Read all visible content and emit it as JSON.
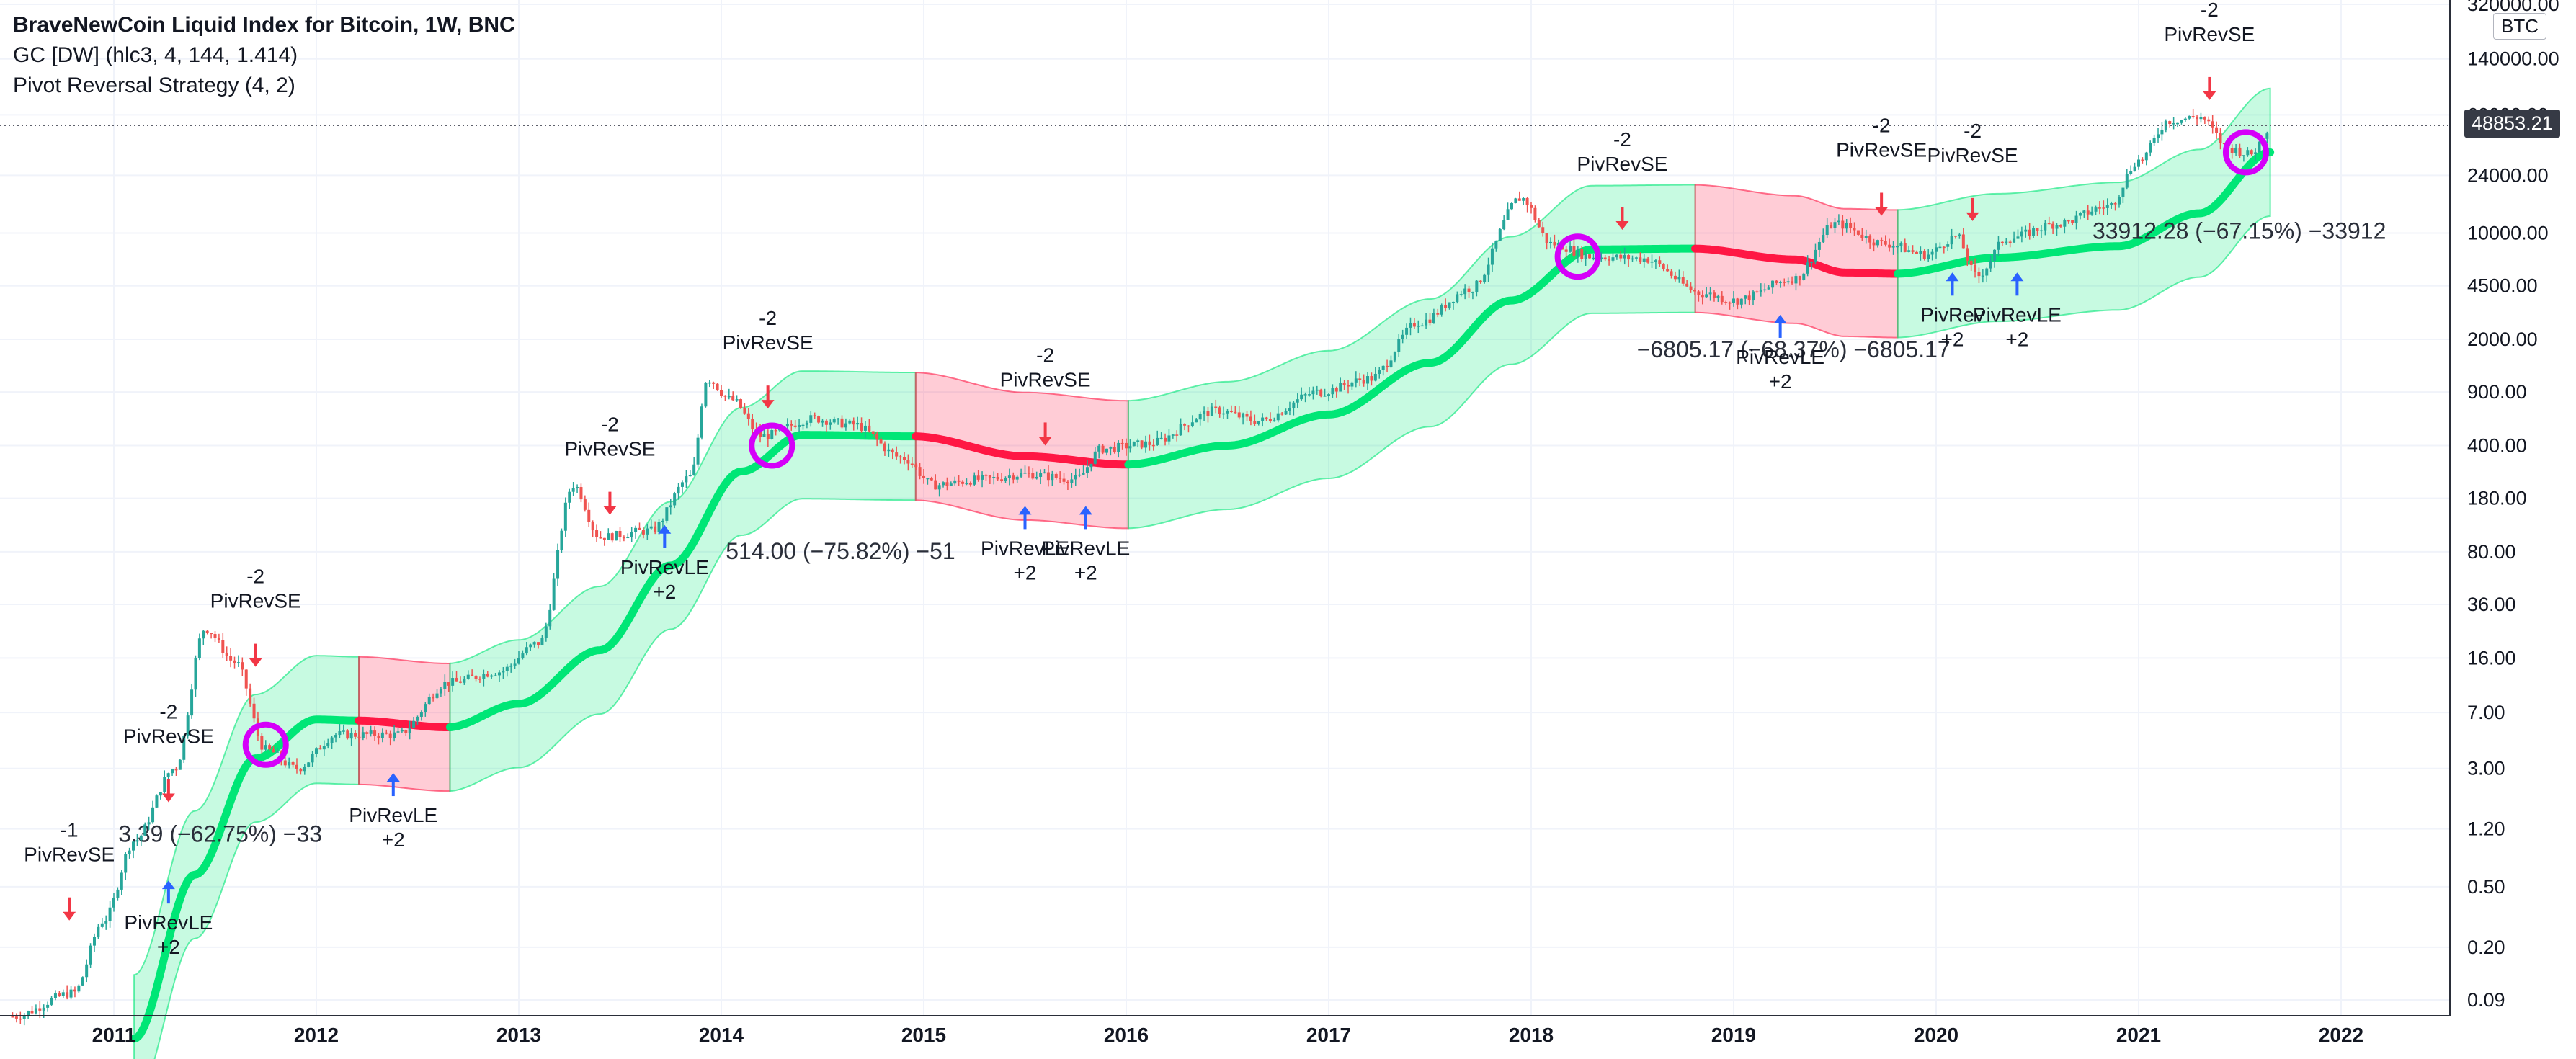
{
  "legend": {
    "title": "BraveNewCoin Liquid Index for Bitcoin, 1W, BNC",
    "indicator1": "GC [DW] (hlc3, 4, 144, 1.414)",
    "indicator2": "Pivot Reversal Strategy (4, 2)"
  },
  "price_axis": {
    "symbol_badge": "BTC",
    "current_price": "48853.21"
  },
  "colors": {
    "up_candle": "#26a69a",
    "down_candle": "#ef5350",
    "band_green": "#00e676",
    "band_red": "#ff1744",
    "buy_arrow": "#2962ff",
    "sell_arrow": "#f23645",
    "circle": "#d500f9",
    "grid": "#f0f3fa"
  },
  "chart_data": {
    "type": "candlestick",
    "scale": "log",
    "xlabel": "",
    "ylabel": "",
    "x_ticks": [
      "2011",
      "2012",
      "2013",
      "2014",
      "2015",
      "2016",
      "2017",
      "2018",
      "2019",
      "2020",
      "2021",
      "2022"
    ],
    "y_ticks": [
      "320000.00",
      "140000.00",
      "60000.00",
      "24000.00",
      "10000.00",
      "4500.00",
      "2000.00",
      "900.00",
      "400.00",
      "180.00",
      "80.00",
      "36.00",
      "16.00",
      "7.00",
      "3.00",
      "1.20",
      "0.50",
      "0.20",
      "0.09"
    ],
    "price_path": [
      {
        "date": "2010.5",
        "price": 0.07
      },
      {
        "date": "2010.8",
        "price": 0.1
      },
      {
        "date": "2010.95",
        "price": 0.3
      },
      {
        "date": "2011.1",
        "price": 1.0
      },
      {
        "date": "2011.3",
        "price": 3
      },
      {
        "date": "2011.45",
        "price": 25
      },
      {
        "date": "2011.6",
        "price": 15
      },
      {
        "date": "2011.75",
        "price": 4
      },
      {
        "date": "2011.9",
        "price": 3
      },
      {
        "date": "2012.1",
        "price": 5
      },
      {
        "date": "2012.4",
        "price": 5
      },
      {
        "date": "2012.65",
        "price": 11
      },
      {
        "date": "2012.9",
        "price": 13
      },
      {
        "date": "2013.1",
        "price": 20
      },
      {
        "date": "2013.27",
        "price": 220
      },
      {
        "date": "2013.4",
        "price": 100
      },
      {
        "date": "2013.65",
        "price": 110
      },
      {
        "date": "2013.85",
        "price": 250
      },
      {
        "date": "2013.93",
        "price": 1100
      },
      {
        "date": "2014.05",
        "price": 800
      },
      {
        "date": "2014.2",
        "price": 460
      },
      {
        "date": "2014.45",
        "price": 600
      },
      {
        "date": "2014.65",
        "price": 550
      },
      {
        "date": "2014.9",
        "price": 330
      },
      {
        "date": "2015.05",
        "price": 220
      },
      {
        "date": "2015.3",
        "price": 240
      },
      {
        "date": "2015.5",
        "price": 260
      },
      {
        "date": "2015.75",
        "price": 240
      },
      {
        "date": "2015.88",
        "price": 380
      },
      {
        "date": "2016.1",
        "price": 410
      },
      {
        "date": "2016.45",
        "price": 680
      },
      {
        "date": "2016.65",
        "price": 580
      },
      {
        "date": "2016.95",
        "price": 900
      },
      {
        "date": "2017.2",
        "price": 1100
      },
      {
        "date": "2017.45",
        "price": 2600
      },
      {
        "date": "2017.7",
        "price": 4300
      },
      {
        "date": "2017.95",
        "price": 17000
      },
      {
        "date": "2018.1",
        "price": 8500
      },
      {
        "date": "2018.3",
        "price": 7000
      },
      {
        "date": "2018.55",
        "price": 6800
      },
      {
        "date": "2018.85",
        "price": 4000
      },
      {
        "date": "2019.0",
        "price": 3600
      },
      {
        "date": "2019.3",
        "price": 5000
      },
      {
        "date": "2019.5",
        "price": 11500
      },
      {
        "date": "2019.75",
        "price": 8500
      },
      {
        "date": "2019.95",
        "price": 7200
      },
      {
        "date": "2020.1",
        "price": 9500
      },
      {
        "date": "2020.2",
        "price": 5200
      },
      {
        "date": "2020.35",
        "price": 9200
      },
      {
        "date": "2020.6",
        "price": 11500
      },
      {
        "date": "2020.85",
        "price": 15000
      },
      {
        "date": "2021.0",
        "price": 30000
      },
      {
        "date": "2021.15",
        "price": 55000
      },
      {
        "date": "2021.3",
        "price": 58000
      },
      {
        "date": "2021.45",
        "price": 36000
      },
      {
        "date": "2021.55",
        "price": 33000
      },
      {
        "date": "2021.65",
        "price": 48853
      }
    ],
    "gc_band": [
      {
        "date": "2011.1",
        "mid": 0.05,
        "state": "up"
      },
      {
        "date": "2011.4",
        "mid": 0.6,
        "state": "up"
      },
      {
        "date": "2011.7",
        "mid": 3.5,
        "state": "up"
      },
      {
        "date": "2012.0",
        "mid": 6.3,
        "state": "up"
      },
      {
        "date": "2012.2",
        "mid": 6.2,
        "state": "down"
      },
      {
        "date": "2012.65",
        "mid": 5.6,
        "state": "up"
      },
      {
        "date": "2013.0",
        "mid": 8,
        "state": "up"
      },
      {
        "date": "2013.4",
        "mid": 18,
        "state": "up"
      },
      {
        "date": "2013.75",
        "mid": 65,
        "state": "up"
      },
      {
        "date": "2014.1",
        "mid": 270,
        "state": "up"
      },
      {
        "date": "2014.4",
        "mid": 470,
        "state": "up"
      },
      {
        "date": "2014.95",
        "mid": 460,
        "state": "down"
      },
      {
        "date": "2015.5",
        "mid": 340,
        "state": "down"
      },
      {
        "date": "2016.0",
        "mid": 300,
        "state": "up"
      },
      {
        "date": "2016.5",
        "mid": 400,
        "state": "up"
      },
      {
        "date": "2017.0",
        "mid": 640,
        "state": "up"
      },
      {
        "date": "2017.5",
        "mid": 1400,
        "state": "up"
      },
      {
        "date": "2017.9",
        "mid": 3600,
        "state": "up"
      },
      {
        "date": "2018.3",
        "mid": 7800,
        "state": "up"
      },
      {
        "date": "2018.8",
        "mid": 7900,
        "state": "down"
      },
      {
        "date": "2019.3",
        "mid": 6700,
        "state": "down"
      },
      {
        "date": "2019.55",
        "mid": 5500,
        "state": "down"
      },
      {
        "date": "2019.8",
        "mid": 5400,
        "state": "up"
      },
      {
        "date": "2020.3",
        "mid": 6900,
        "state": "up"
      },
      {
        "date": "2020.9",
        "mid": 8200,
        "state": "up"
      },
      {
        "date": "2021.3",
        "mid": 13500,
        "state": "up"
      },
      {
        "date": "2021.65",
        "mid": 34000,
        "state": "up"
      }
    ],
    "signals": [
      {
        "type": "sell",
        "label": "PivRevSE",
        "qty": "-1",
        "date": "2010.78",
        "price": 0.3
      },
      {
        "type": "buy",
        "label": "PivRevLE",
        "qty": "+2",
        "date": "2011.27",
        "price": 0.55
      },
      {
        "type": "sell",
        "label": "PivRevSE",
        "qty": "-2",
        "date": "2011.27",
        "price": 1.8
      },
      {
        "type": "sell",
        "label": "PivRevSE",
        "qty": "-2",
        "date": "2011.7",
        "price": 14
      },
      {
        "type": "buy",
        "label": "PivRevLE",
        "qty": "+2",
        "date": "2012.38",
        "price": 2.8
      },
      {
        "type": "sell",
        "label": "PivRevSE",
        "qty": "-2",
        "date": "2013.45",
        "price": 140
      },
      {
        "type": "buy",
        "label": "PivRevLE",
        "qty": "+2",
        "date": "2013.72",
        "price": 120
      },
      {
        "type": "sell",
        "label": "PivRevSE",
        "qty": "-2",
        "date": "2014.23",
        "price": 700
      },
      {
        "type": "sell",
        "label": "PivRevSE",
        "qty": "-2",
        "date": "2015.6",
        "price": 400
      },
      {
        "type": "buy",
        "label": "PivRevLE",
        "qty": "+2",
        "date": "2015.5",
        "price": 160
      },
      {
        "type": "buy",
        "label": "PivRevLE",
        "qty": "+2",
        "date": "2015.8",
        "price": 160
      },
      {
        "type": "sell",
        "label": "PivRevSE",
        "qty": "-2",
        "date": "2018.45",
        "price": 10500
      },
      {
        "type": "buy",
        "label": "PivRevLE",
        "qty": "+2",
        "date": "2019.23",
        "price": 2900
      },
      {
        "type": "sell",
        "label": "PivRevSE",
        "qty": "-2",
        "date": "2019.73",
        "price": 13000
      },
      {
        "type": "sell",
        "label": "PivRevSE",
        "qty": "-2",
        "date": "2020.18",
        "price": 12000
      },
      {
        "type": "buy",
        "label": "PivRev",
        "qty": "+2",
        "date": "2020.08",
        "price": 5500
      },
      {
        "type": "buy",
        "label": "PivRevLE",
        "qty": "+2",
        "date": "2020.4",
        "price": 5500
      },
      {
        "type": "sell",
        "label": "PivRevSE",
        "qty": "-2",
        "date": "2021.35",
        "price": 75000
      }
    ],
    "trades": [
      {
        "label": "3.39 (−62.75%) −33",
        "entry_date": "2011.2",
        "price": 1.1
      },
      {
        "label": "514.00 (−75.82%) −51",
        "entry_date": "2014.2",
        "price": 80
      },
      {
        "label": "−6805.17 (−68.37%) −6805.17",
        "entry_date": "2018.7",
        "price": 1700
      },
      {
        "label": "33912.28 (−67.15%) −33912",
        "entry_date": "2020.95",
        "price": 10200
      }
    ],
    "regime_circles": [
      {
        "date": "2011.75",
        "price": 4.3
      },
      {
        "date": "2014.25",
        "price": 400
      },
      {
        "date": "2018.23",
        "price": 7000
      },
      {
        "date": "2021.53",
        "price": 34000
      }
    ]
  }
}
